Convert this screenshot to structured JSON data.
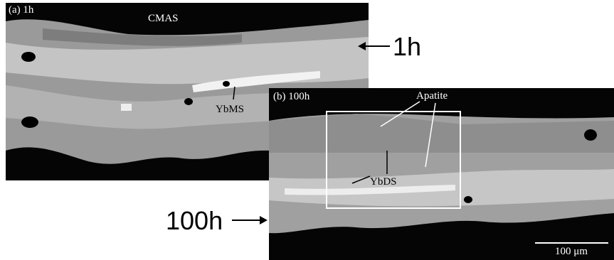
{
  "panel_a": {
    "label": "(a) 1h",
    "top_label": "CMAS",
    "phase": "YbMS"
  },
  "panel_b": {
    "label": "(b) 100h",
    "apatite": "Apatite",
    "phase": "YbDS",
    "scale_bar": "100 μm"
  },
  "time_labels": [
    "1h",
    "100h"
  ]
}
